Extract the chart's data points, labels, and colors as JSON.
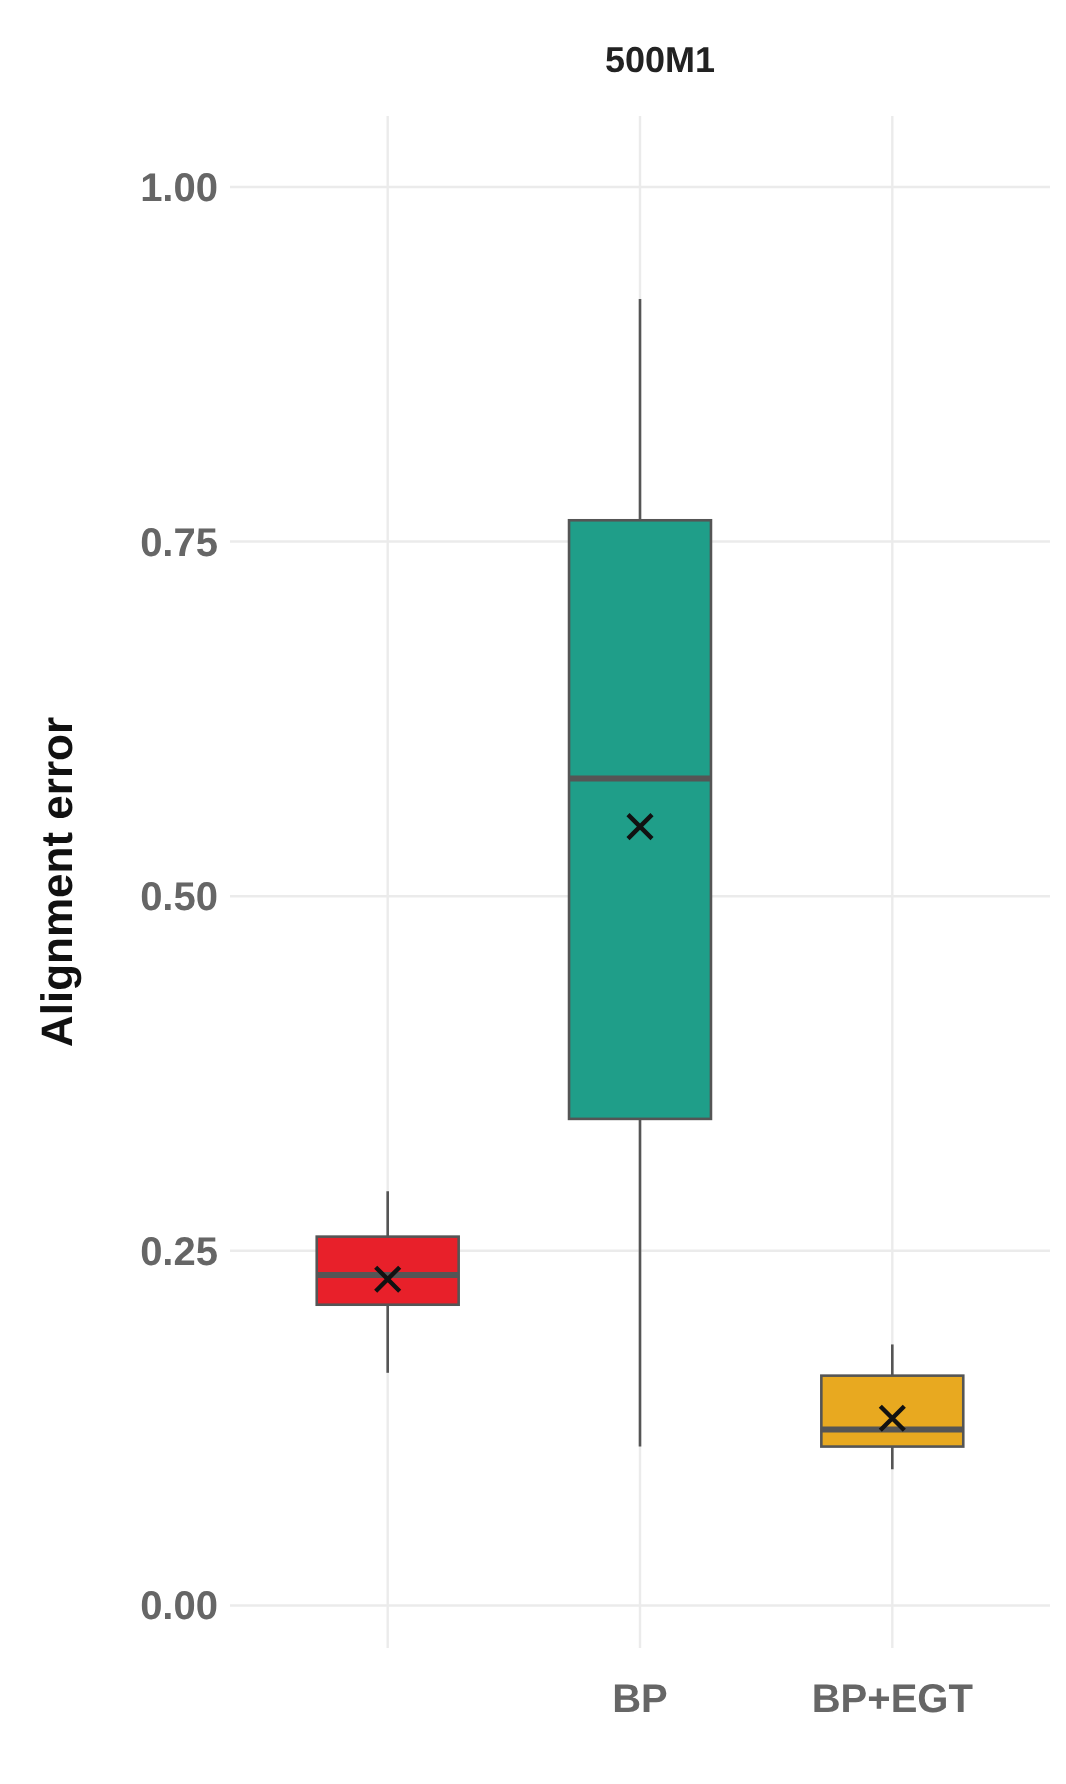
{
  "chart_data": {
    "type": "box",
    "title": "500M1",
    "ylabel": "Alignment error",
    "categories": [
      null,
      "BP",
      "BP+EGT"
    ],
    "colors": [
      "#e8202a",
      "#1f9e89",
      "#e8a920"
    ],
    "boxes": [
      {
        "low": 0.164,
        "q1": 0.212,
        "median": 0.233,
        "q3": 0.26,
        "high": 0.292,
        "mean": 0.23
      },
      {
        "low": 0.112,
        "q1": 0.343,
        "median": 0.583,
        "q3": 0.765,
        "high": 0.921,
        "mean": 0.549
      },
      {
        "low": 0.096,
        "q1": 0.112,
        "median": 0.124,
        "q3": 0.162,
        "high": 0.184,
        "mean": 0.132
      }
    ],
    "ylim": [
      -0.03,
      1.05
    ],
    "yticks": [
      {
        "value": 0,
        "label": "0.00"
      },
      {
        "value": 0.25,
        "label": "0.25"
      },
      {
        "value": 0.5,
        "label": "0.50"
      },
      {
        "value": 0.75,
        "label": "0.75"
      },
      {
        "value": 1,
        "label": "1.00"
      }
    ],
    "grid": true
  }
}
